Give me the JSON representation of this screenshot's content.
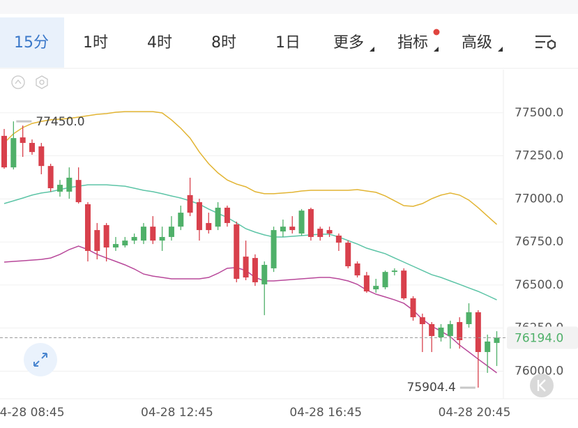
{
  "toolbar": {
    "tabs": [
      "15分",
      "1时",
      "4时",
      "8时",
      "1日",
      "更多",
      "指标",
      "高级"
    ],
    "active": 0
  },
  "chart_data": {
    "type": "candlestick",
    "categories": [
      null,
      null,
      "04-28 08:45",
      null,
      null,
      null,
      null,
      null,
      null,
      null,
      null,
      null,
      null,
      null,
      null,
      null,
      null,
      null,
      "04-28 12:45",
      null,
      null,
      null,
      null,
      null,
      null,
      null,
      null,
      null,
      null,
      null,
      null,
      null,
      null,
      null,
      "04-28 16:45",
      null,
      null,
      null,
      null,
      null,
      null,
      null,
      null,
      null,
      null,
      null,
      null,
      null,
      null,
      null,
      "04-28 20:45",
      null,
      null,
      null
    ],
    "open": [
      77366,
      77183,
      77357,
      77325,
      77305,
      77191,
      77042,
      77042,
      77110,
      76969,
      76819,
      76848,
      76718,
      76730,
      76758,
      76758,
      76839,
      76758,
      76779,
      76839,
      77022,
      76981,
      76860,
      76839,
      76949,
      76852,
      76665,
      76657,
      76504,
      76597,
      76811,
      76839,
      76799,
      76941,
      76827,
      76819,
      76787,
      76746,
      76625,
      76556,
      76475,
      76487,
      76576,
      76584,
      76423,
      76313,
      76273,
      76196,
      76204,
      76285,
      76273,
      76342,
      76111,
      76164
    ],
    "high": [
      77406,
      77450,
      77426,
      77345,
      77325,
      77204,
      77110,
      77183,
      77183,
      76981,
      76860,
      76860,
      76779,
      76779,
      76799,
      76860,
      76900,
      76839,
      76900,
      76961,
      77123,
      77001,
      76920,
      76981,
      76961,
      76868,
      76758,
      76678,
      76637,
      76839,
      76880,
      76900,
      76941,
      76949,
      76839,
      76839,
      76799,
      76758,
      76637,
      76576,
      76536,
      76584,
      76597,
      76597,
      76435,
      76334,
      76285,
      76273,
      76293,
      76313,
      76394,
      76354,
      76212,
      76232
    ],
    "low": [
      77175,
      77171,
      77244,
      77256,
      77143,
      77042,
      77013,
      77001,
      76973,
      76637,
      76649,
      76637,
      76698,
      76718,
      76738,
      76738,
      76738,
      76698,
      76758,
      76819,
      76900,
      76758,
      76799,
      76819,
      76839,
      76516,
      76528,
      76495,
      76325,
      76576,
      76779,
      76799,
      76787,
      76758,
      76758,
      76779,
      76698,
      76597,
      76544,
      76455,
      76455,
      76475,
      76556,
      76414,
      76293,
      76111,
      76111,
      76172,
      76131,
      76131,
      76253,
      75904.4,
      75990,
      76030
    ],
    "close": [
      77183,
      77353,
      77325,
      77272,
      77191,
      77062,
      77082,
      77123,
      76981,
      76698,
      76698,
      76718,
      76738,
      76758,
      76779,
      76839,
      76758,
      76779,
      76839,
      76920,
      76920,
      76819,
      76819,
      76949,
      76860,
      76536,
      76544,
      76516,
      76617,
      76819,
      76839,
      76819,
      76932,
      76779,
      76779,
      76799,
      76746,
      76609,
      76556,
      76463,
      76495,
      76576,
      76584,
      76423,
      76313,
      76273,
      76204,
      76253,
      76273,
      76180,
      76342,
      76111,
      76172,
      76194
    ],
    "up_color": "#4fb069",
    "down_color": "#d8404c",
    "overlays": [
      {
        "color": "#e2b432",
        "values": [
          77325,
          77378,
          77414,
          77438,
          77450,
          77459,
          77463,
          77467,
          77475,
          77483,
          77491,
          77495,
          77503,
          77507,
          77507,
          77507,
          77507,
          77499,
          77459,
          77410,
          77353,
          77272,
          77204,
          77151,
          77110,
          77086,
          77070,
          77042,
          77030,
          77030,
          77034,
          77038,
          77046,
          77050,
          77050,
          77050,
          77050,
          77050,
          77054,
          77046,
          77038,
          77017,
          76989,
          76961,
          76957,
          76973,
          77001,
          77022,
          77034,
          77022,
          76993,
          76949,
          76900,
          76852
        ]
      },
      {
        "color": "#5cc4a6",
        "values": [
          76973,
          76989,
          77005,
          77022,
          77034,
          77042,
          77054,
          77066,
          77074,
          77082,
          77082,
          77082,
          77078,
          77074,
          77062,
          77050,
          77042,
          77030,
          77017,
          77005,
          76989,
          76969,
          76941,
          76916,
          76892,
          76860,
          76827,
          76807,
          76791,
          76779,
          76779,
          76783,
          76787,
          76791,
          76795,
          76795,
          76779,
          76758,
          76738,
          76714,
          76698,
          76682,
          76657,
          76633,
          76609,
          76584,
          76560,
          76544,
          76524,
          76504,
          76483,
          76463,
          76439,
          76414
        ]
      },
      {
        "color": "#b8489a",
        "values": [
          76633,
          76637,
          76641,
          76645,
          76649,
          76657,
          76678,
          76706,
          76726,
          76706,
          76678,
          76657,
          76637,
          76617,
          76593,
          76564,
          76552,
          76544,
          76536,
          76536,
          76536,
          76536,
          76544,
          76568,
          76597,
          76601,
          76584,
          76544,
          76524,
          76524,
          76528,
          76532,
          76536,
          76540,
          76544,
          76544,
          76536,
          76524,
          76504,
          76471,
          76447,
          76431,
          76414,
          76394,
          76354,
          76301,
          76261,
          76232,
          76200,
          76151,
          76111,
          76070,
          76030,
          75990
        ]
      }
    ],
    "ylim": [
      75840,
      77750
    ],
    "yticks": [
      {
        "value": 76000,
        "label": "76000.0"
      },
      {
        "value": 76250,
        "label": "76250.0"
      },
      {
        "value": 76500,
        "label": "76500.0"
      },
      {
        "value": 76750,
        "label": "76750.0"
      },
      {
        "value": 77000,
        "label": "77000.0"
      },
      {
        "value": 77250,
        "label": "77250.0"
      },
      {
        "value": 77500,
        "label": "77500.0"
      }
    ],
    "grid": true,
    "high_label": "77450.0",
    "low_label": "75904.4",
    "last_label": "76194.0"
  }
}
